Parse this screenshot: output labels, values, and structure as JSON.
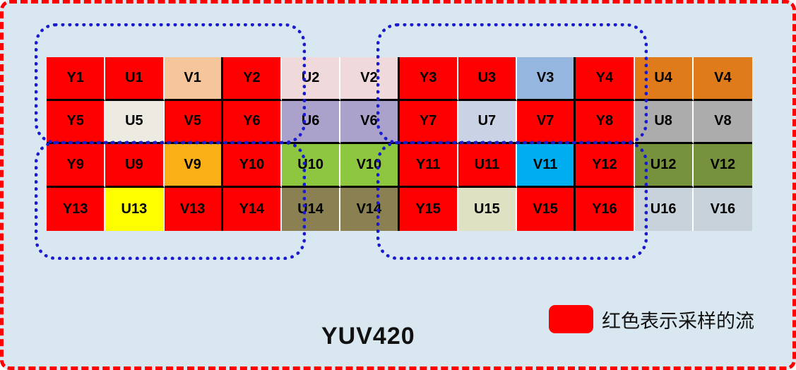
{
  "title": "YUV420",
  "legend": {
    "label": "红色表示采样的流",
    "swatch_color": "#FF0000"
  },
  "colors": {
    "background": "#D9E8F0",
    "outer_border": "#FF0000",
    "group_outline": "#1A1ACE",
    "sampled": "#FF0000",
    "grid_line": "#000000",
    "cell_gap": "#FFFFFF"
  },
  "grid": {
    "columns": 12,
    "rows": [
      {
        "cells": [
          {
            "label": "Y1",
            "color": "#FF0000",
            "sampled": true
          },
          {
            "label": "U1",
            "color": "#FF0000",
            "sampled": true
          },
          {
            "label": "V1",
            "color": "#F5C69C",
            "sampled": false
          },
          {
            "label": "Y2",
            "color": "#FF0000",
            "sampled": true
          },
          {
            "label": "U2",
            "color": "#EFD9DB",
            "sampled": false
          },
          {
            "label": "V2",
            "color": "#EFD9DB",
            "sampled": false
          },
          {
            "label": "Y3",
            "color": "#FF0000",
            "sampled": true
          },
          {
            "label": "U3",
            "color": "#FF0000",
            "sampled": true
          },
          {
            "label": "V3",
            "color": "#94B6DF",
            "sampled": false
          },
          {
            "label": "Y4",
            "color": "#FF0000",
            "sampled": true
          },
          {
            "label": "U4",
            "color": "#E07B1C",
            "sampled": false
          },
          {
            "label": "V4",
            "color": "#E07B1C",
            "sampled": false
          }
        ]
      },
      {
        "cells": [
          {
            "label": "Y5",
            "color": "#FF0000",
            "sampled": true
          },
          {
            "label": "U5",
            "color": "#ECEAE1",
            "sampled": false
          },
          {
            "label": "V5",
            "color": "#FF0000",
            "sampled": true
          },
          {
            "label": "Y6",
            "color": "#FF0000",
            "sampled": true
          },
          {
            "label": "U6",
            "color": "#ABA2CB",
            "sampled": false
          },
          {
            "label": "V6",
            "color": "#ABA2CB",
            "sampled": false
          },
          {
            "label": "Y7",
            "color": "#FF0000",
            "sampled": true
          },
          {
            "label": "U7",
            "color": "#CAD3E6",
            "sampled": false
          },
          {
            "label": "V7",
            "color": "#FF0000",
            "sampled": true
          },
          {
            "label": "Y8",
            "color": "#FF0000",
            "sampled": true
          },
          {
            "label": "U8",
            "color": "#ACACAC",
            "sampled": false
          },
          {
            "label": "V8",
            "color": "#ACACAC",
            "sampled": false
          }
        ]
      },
      {
        "cells": [
          {
            "label": "Y9",
            "color": "#FF0000",
            "sampled": true
          },
          {
            "label": "U9",
            "color": "#FF0000",
            "sampled": true
          },
          {
            "label": "V9",
            "color": "#FCB017",
            "sampled": false
          },
          {
            "label": "Y10",
            "color": "#FF0000",
            "sampled": true
          },
          {
            "label": "U10",
            "color": "#8DC63F",
            "sampled": false
          },
          {
            "label": "V10",
            "color": "#8DC63F",
            "sampled": false
          },
          {
            "label": "Y11",
            "color": "#FF0000",
            "sampled": true
          },
          {
            "label": "U11",
            "color": "#FF0000",
            "sampled": true
          },
          {
            "label": "V11",
            "color": "#00AEEF",
            "sampled": false
          },
          {
            "label": "Y12",
            "color": "#FF0000",
            "sampled": true
          },
          {
            "label": "U12",
            "color": "#77923D",
            "sampled": false
          },
          {
            "label": "V12",
            "color": "#77923D",
            "sampled": false
          }
        ]
      },
      {
        "cells": [
          {
            "label": "Y13",
            "color": "#FF0000",
            "sampled": true
          },
          {
            "label": "U13",
            "color": "#FFFF00",
            "sampled": false
          },
          {
            "label": "V13",
            "color": "#FF0000",
            "sampled": true
          },
          {
            "label": "Y14",
            "color": "#FF0000",
            "sampled": true
          },
          {
            "label": "U14",
            "color": "#8B8052",
            "sampled": false
          },
          {
            "label": "V14",
            "color": "#8B8052",
            "sampled": false
          },
          {
            "label": "Y15",
            "color": "#FF0000",
            "sampled": true
          },
          {
            "label": "U15",
            "color": "#DFE1C3",
            "sampled": false
          },
          {
            "label": "V15",
            "color": "#FF0000",
            "sampled": true
          },
          {
            "label": "Y16",
            "color": "#FF0000",
            "sampled": true
          },
          {
            "label": "U16",
            "color": "#C8D2DA",
            "sampled": false
          },
          {
            "label": "V16",
            "color": "#C8D2DA",
            "sampled": false
          }
        ]
      }
    ]
  },
  "groups": [
    {
      "name": "top-left"
    },
    {
      "name": "top-right"
    },
    {
      "name": "bottom-left"
    },
    {
      "name": "bottom-right"
    }
  ]
}
